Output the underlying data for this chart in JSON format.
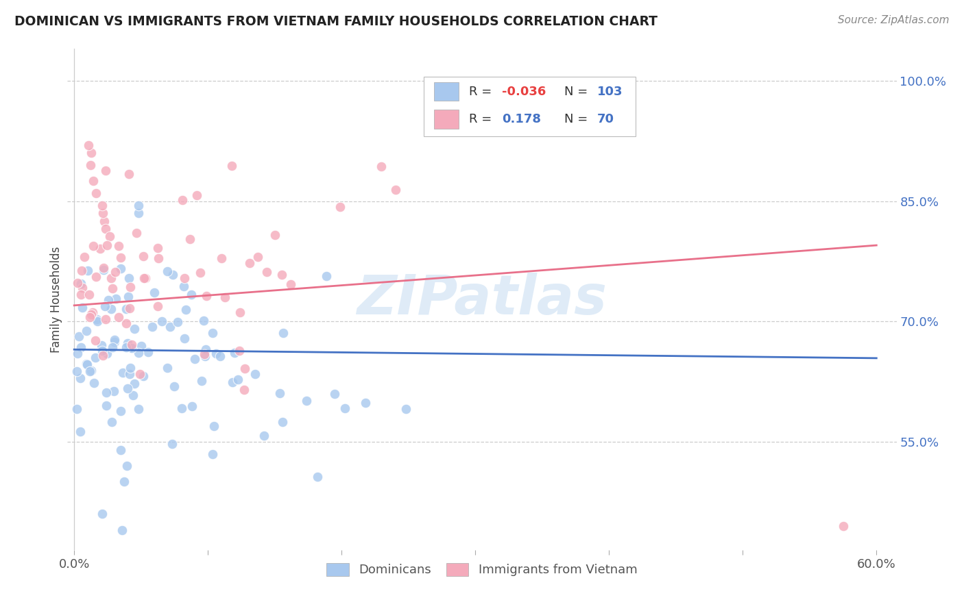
{
  "title": "DOMINICAN VS IMMIGRANTS FROM VIETNAM FAMILY HOUSEHOLDS CORRELATION CHART",
  "source": "Source: ZipAtlas.com",
  "ylabel": "Family Households",
  "legend_label1": "Dominicans",
  "legend_label2": "Immigrants from Vietnam",
  "R1": "-0.036",
  "N1": "103",
  "R2": "0.178",
  "N2": "70",
  "color_blue": "#A8C8EE",
  "color_pink": "#F4AABB",
  "color_blue_line": "#4472C4",
  "color_pink_line": "#E8708A",
  "color_text_blue": "#4472C4",
  "color_R_negative": "#E84040",
  "watermark": "ZIPatlas",
  "ytick_labels": [
    "55.0%",
    "70.0%",
    "85.0%",
    "100.0%"
  ],
  "yticks": [
    0.55,
    0.7,
    0.85,
    1.0
  ]
}
